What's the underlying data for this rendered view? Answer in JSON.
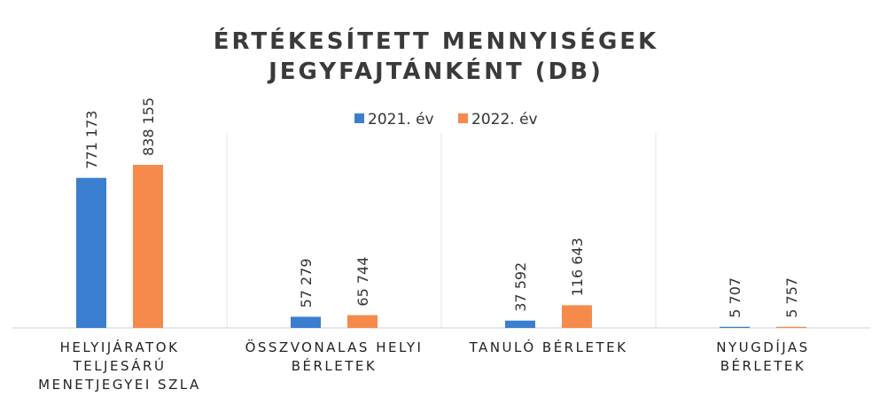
{
  "chart_data": {
    "type": "bar",
    "title": "ÉRTÉKESÍTETT MENNYISÉGEK\nJEGYFAJTÁNKÉNT (DB)",
    "categories": [
      "HELYIJÁRATOK\nTELJESÁRÚ\nMENETJEGYEI SZLA",
      "ÖSSZVONALAS HELYI\nBÉRLETEK",
      "TANULÓ BÉRLETEK",
      "NYUGDÍJAS\nBÉRLETEK"
    ],
    "series": [
      {
        "name": "2021. év",
        "color": "#3a7fcf",
        "values": [
          771173,
          57279,
          37592,
          5707
        ],
        "value_labels": [
          "771 173",
          "57 279",
          "37 592",
          "5 707"
        ]
      },
      {
        "name": "2022. év",
        "color": "#f58a4b",
        "values": [
          838155,
          65744,
          116643,
          5757
        ],
        "value_labels": [
          "838 155",
          "65 744",
          "116 643",
          "5 757"
        ]
      }
    ],
    "legend": "top"
  }
}
